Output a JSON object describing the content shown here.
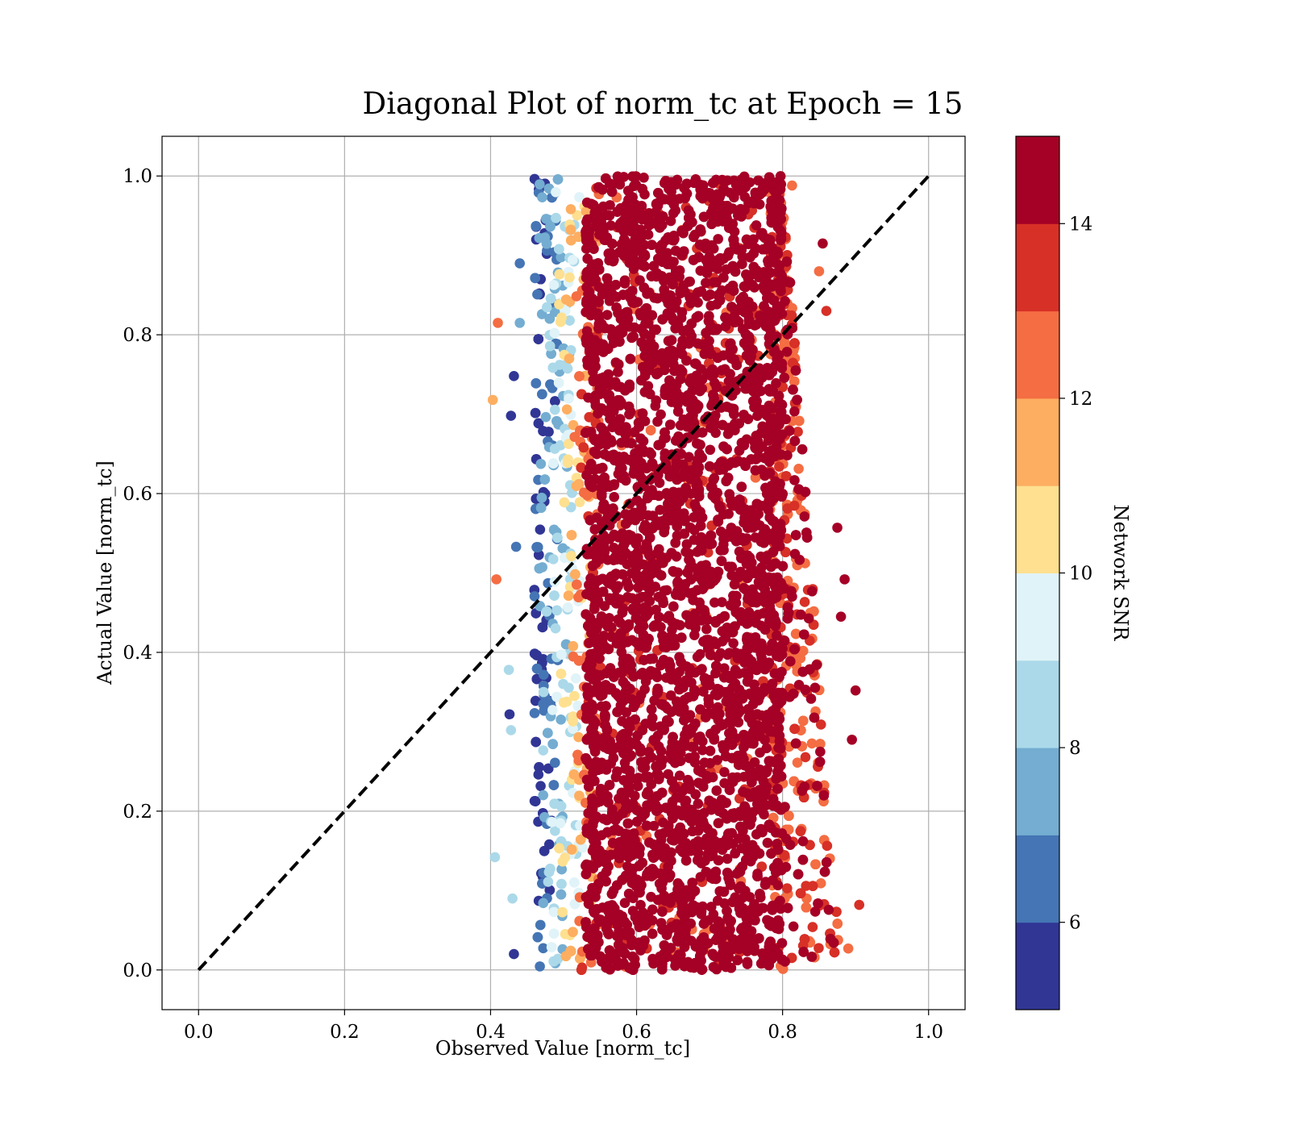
{
  "chart_data": {
    "type": "scatter",
    "title": "Diagonal Plot of norm_tc at Epoch = 15",
    "xlabel": "Observed Value [norm_tc]",
    "ylabel": "Actual Value [norm_tc]",
    "xlim": [
      -0.05,
      1.05
    ],
    "ylim": [
      -0.05,
      1.05
    ],
    "x_ticks": [
      "0.0",
      "0.2",
      "0.4",
      "0.6",
      "0.8",
      "1.0"
    ],
    "y_ticks": [
      "0.0",
      "0.2",
      "0.4",
      "0.6",
      "0.8",
      "1.0"
    ],
    "grid": true,
    "reference_line": {
      "style": "dashed",
      "color": "#000000",
      "x": [
        0.0,
        1.0
      ],
      "y": [
        0.0,
        1.0
      ]
    },
    "colorbar": {
      "label": "Network SNR",
      "range": [
        5,
        15
      ],
      "ticks": [
        "6",
        "8",
        "10",
        "12",
        "14"
      ],
      "colors": [
        "#313695",
        "#4575b4",
        "#74add1",
        "#abd9e9",
        "#e0f3f8",
        "#fee090",
        "#fdae61",
        "#f46d43",
        "#d73027",
        "#a50026"
      ]
    },
    "distribution": {
      "core_x_range": [
        0.55,
        0.78
      ],
      "core_snr": 15,
      "left_edge_x": [
        0.46,
        0.55
      ],
      "right_edge_x_at_top": [
        0.78,
        0.8
      ],
      "right_edge_x_at_bottom": [
        0.78,
        0.88
      ],
      "y_range": [
        0.0,
        1.0
      ],
      "left_outliers": [
        {
          "x": 0.41,
          "y": 0.815,
          "snr": 12.5
        },
        {
          "x": 0.403,
          "y": 0.718,
          "snr": 11.5
        },
        {
          "x": 0.408,
          "y": 0.492,
          "snr": 12.5
        },
        {
          "x": 0.406,
          "y": 0.142,
          "snr": 8.5
        },
        {
          "x": 0.432,
          "y": 0.02,
          "snr": 5.5
        },
        {
          "x": 0.432,
          "y": 0.748,
          "snr": 5.5
        },
        {
          "x": 0.428,
          "y": 0.698,
          "snr": 5.5
        },
        {
          "x": 0.44,
          "y": 0.815,
          "snr": 7.5
        },
        {
          "x": 0.43,
          "y": 0.09,
          "snr": 8.5
        },
        {
          "x": 0.425,
          "y": 0.378,
          "snr": 8.5
        },
        {
          "x": 0.44,
          "y": 0.89,
          "snr": 6.5
        },
        {
          "x": 0.435,
          "y": 0.533,
          "snr": 6.5
        },
        {
          "x": 0.428,
          "y": 0.302,
          "snr": 8.5
        },
        {
          "x": 0.426,
          "y": 0.322,
          "snr": 5.5
        }
      ],
      "right_outliers": [
        {
          "x": 0.86,
          "y": 0.83,
          "snr": 13.5
        },
        {
          "x": 0.855,
          "y": 0.915,
          "snr": 14.5
        },
        {
          "x": 0.85,
          "y": 0.88,
          "snr": 12.5
        },
        {
          "x": 0.813,
          "y": 0.988,
          "snr": 12.5
        },
        {
          "x": 0.875,
          "y": 0.557,
          "snr": 14.5
        },
        {
          "x": 0.885,
          "y": 0.492,
          "snr": 14.5
        },
        {
          "x": 0.9,
          "y": 0.352,
          "snr": 14.5
        },
        {
          "x": 0.905,
          "y": 0.082,
          "snr": 13.5
        },
        {
          "x": 0.89,
          "y": 0.027,
          "snr": 12.5
        },
        {
          "x": 0.895,
          "y": 0.29,
          "snr": 14.5
        },
        {
          "x": 0.88,
          "y": 0.445,
          "snr": 14.5
        }
      ]
    }
  }
}
